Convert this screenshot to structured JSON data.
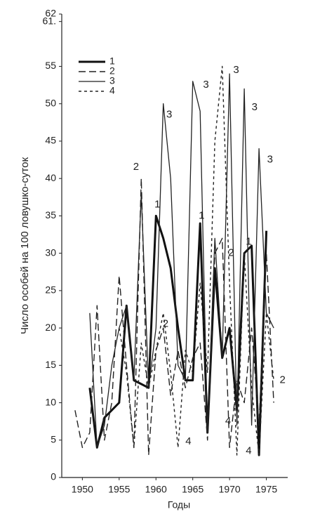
{
  "chart_data": {
    "type": "line",
    "x_label": "Годы",
    "y_label": "Число особей на 100 ловушко-суток",
    "x": [
      1949,
      1950,
      1951,
      1952,
      1953,
      1954,
      1955,
      1956,
      1957,
      1958,
      1959,
      1960,
      1961,
      1962,
      1963,
      1964,
      1965,
      1966,
      1967,
      1968,
      1969,
      1970,
      1971,
      1972,
      1973,
      1974,
      1975,
      1976
    ],
    "series": [
      {
        "name": "1",
        "color": "#111111",
        "dash": "none",
        "width": 3,
        "values": [
          null,
          null,
          12,
          4,
          8,
          9,
          10,
          23,
          13,
          12.5,
          12,
          35,
          32,
          28,
          20,
          13,
          13,
          34,
          6,
          28,
          16,
          20,
          9,
          30,
          31,
          3,
          33,
          null
        ]
      },
      {
        "name": "2",
        "color": "#222222",
        "dash": "10 5",
        "width": 1.4,
        "values": [
          9,
          4,
          6,
          23,
          5,
          10,
          27,
          15,
          4,
          40,
          3,
          17,
          20,
          11,
          17,
          12,
          16,
          18,
          5,
          30,
          32,
          4,
          13,
          10,
          20,
          7,
          30,
          10
        ]
      },
      {
        "name": "3",
        "color": "#222222",
        "dash": "none",
        "width": 1.3,
        "values": [
          null,
          null,
          22,
          4,
          7,
          15,
          20,
          23,
          13,
          38,
          12,
          20,
          50,
          40,
          15,
          13,
          53,
          49,
          6,
          32,
          16,
          54,
          7,
          52,
          7,
          44,
          22,
          20
        ]
      },
      {
        "name": "4",
        "color": "#222222",
        "dash": "4 4",
        "width": 1.4,
        "values": [
          null,
          null,
          null,
          null,
          null,
          null,
          20,
          14,
          4,
          18,
          12,
          17,
          22,
          14,
          4,
          17,
          14,
          26,
          14,
          45,
          55,
          26,
          3,
          30,
          12,
          3,
          22,
          13
        ]
      }
    ],
    "annotations": [
      {
        "text": "2",
        "x": 1957.3,
        "y": 41.5
      },
      {
        "text": "1",
        "x": 1960.2,
        "y": 36.5
      },
      {
        "text": "3",
        "x": 1961.8,
        "y": 48.5
      },
      {
        "text": "2",
        "x": 1961.3,
        "y": 20.5
      },
      {
        "text": "4",
        "x": 1964.4,
        "y": 4.8
      },
      {
        "text": "3",
        "x": 1966.8,
        "y": 52.5
      },
      {
        "text": "1",
        "x": 1966.2,
        "y": 35
      },
      {
        "text": "2",
        "x": 1970.2,
        "y": 30
      },
      {
        "text": "3",
        "x": 1970.9,
        "y": 54.5
      },
      {
        "text": "4",
        "x": 1969.8,
        "y": 7.5
      },
      {
        "text": "3",
        "x": 1973.4,
        "y": 49.5
      },
      {
        "text": "1",
        "x": 1972.6,
        "y": 31.5
      },
      {
        "text": "4",
        "x": 1972.6,
        "y": 3.5
      },
      {
        "text": "3",
        "x": 1975.5,
        "y": 42.5
      },
      {
        "text": "2",
        "x": 1977.2,
        "y": 13
      }
    ],
    "xlim": [
      1947.2,
      1977.9
    ],
    "xticks": [
      1950,
      1955,
      1960,
      1965,
      1970,
      1975
    ],
    "ylim": [
      0,
      62
    ],
    "yticks": [
      0,
      5,
      10,
      15,
      20,
      25,
      30,
      35,
      40,
      45,
      50,
      55,
      {
        "value": 61,
        "label": "61."
      },
      62
    ],
    "legend": "upper left"
  }
}
